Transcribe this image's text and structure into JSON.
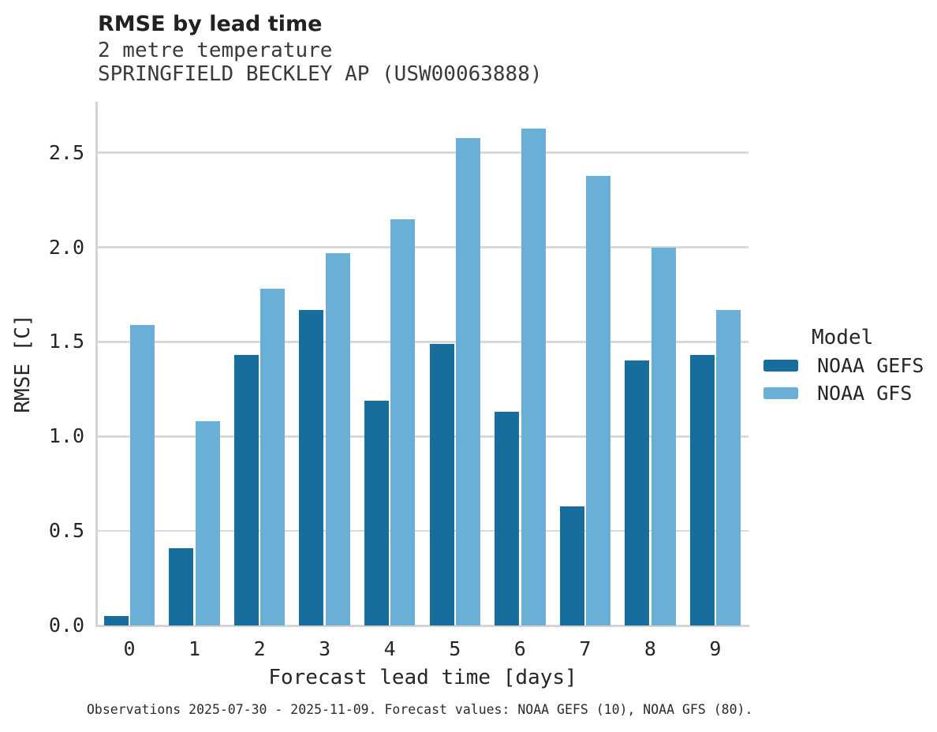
{
  "header": {
    "title": "RMSE by lead time",
    "subtitle_line1": "2 metre temperature",
    "subtitle_line2": "SPRINGFIELD BECKLEY AP (USW00063888)"
  },
  "axes": {
    "xlabel": "Forecast lead time [days]",
    "ylabel": "RMSE [C]",
    "xtick_labels": [
      "0",
      "1",
      "2",
      "3",
      "4",
      "5",
      "6",
      "7",
      "8",
      "9"
    ],
    "ytick_labels": [
      "0.0",
      "0.5",
      "1.0",
      "1.5",
      "2.0",
      "2.5"
    ]
  },
  "legend": {
    "title": "Model",
    "entries": [
      {
        "label": "NOAA GEFS",
        "color": "#176e9c"
      },
      {
        "label": "NOAA GFS",
        "color": "#69afd6"
      }
    ]
  },
  "footer": {
    "note": "Observations 2025-07-30 - 2025-11-09. Forecast values: NOAA GEFS (10), NOAA GFS (80)."
  },
  "chart_data": {
    "type": "bar",
    "title": "RMSE by lead time",
    "subtitle": "2 metre temperature, SPRINGFIELD BECKLEY AP (USW00063888)",
    "categories": [
      0,
      1,
      2,
      3,
      4,
      5,
      6,
      7,
      8,
      9
    ],
    "series": [
      {
        "name": "NOAA GEFS",
        "color": "#176e9c",
        "values": [
          0.05,
          0.41,
          1.43,
          1.67,
          1.19,
          1.49,
          1.13,
          0.63,
          1.4,
          1.43
        ]
      },
      {
        "name": "NOAA GFS",
        "color": "#69afd6",
        "values": [
          1.59,
          1.08,
          1.78,
          1.97,
          2.15,
          2.58,
          2.63,
          2.38,
          2.0,
          1.67
        ]
      }
    ],
    "xlabel": "Forecast lead time [days]",
    "ylabel": "RMSE [C]",
    "ylim": [
      0,
      2.77
    ],
    "yticks": [
      0.0,
      0.5,
      1.0,
      1.5,
      2.0,
      2.5
    ],
    "grid": true,
    "legend_title": "Model",
    "legend_position": "right"
  }
}
